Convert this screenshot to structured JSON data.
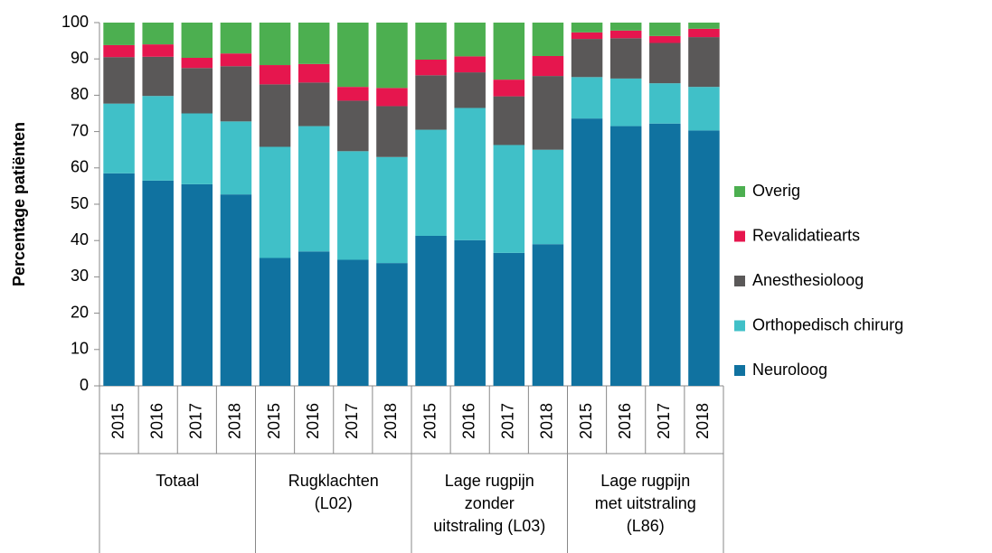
{
  "chart_data": {
    "type": "stacked_bar",
    "y_label": "Percentage patiënten",
    "categories": [
      "2015",
      "2016",
      "2017",
      "2018",
      "2015",
      "2016",
      "2017",
      "2018",
      "2015",
      "2016",
      "2017",
      "2018",
      "2015",
      "2016",
      "2017",
      "2018"
    ],
    "groups": [
      [
        "Totaal"
      ],
      [
        "Rugklachten",
        "(L02)"
      ],
      [
        "Lage rugpijn",
        "zonder",
        "uitstraling (L03)"
      ],
      [
        "Lage rugpijn",
        "met uitstraling",
        "(L86)"
      ]
    ],
    "series": [
      {
        "name": "Neuroloog",
        "color": "#1072a0",
        "values": [
          58.5,
          56.5,
          55.5,
          52.7,
          35.2,
          37,
          34.7,
          33.8,
          41.3,
          40.1,
          36.6,
          39,
          73.6,
          71.5,
          72.2,
          70.3
        ]
      },
      {
        "name": "Orthopedisch chirurg",
        "color": "#40c0c8",
        "values": [
          19.2,
          23.3,
          19.5,
          20.1,
          30.6,
          34.5,
          29.9,
          29.2,
          29.2,
          36.4,
          29.7,
          26,
          11.4,
          13.1,
          11.1,
          12
        ]
      },
      {
        "name": "Anesthesioloog",
        "color": "#5a5858",
        "values": [
          12.8,
          10.8,
          12.5,
          15.2,
          17.2,
          12,
          13.9,
          14,
          15,
          9.8,
          13.4,
          20.3,
          10.5,
          11.1,
          11.1,
          13.7
        ]
      },
      {
        "name": "Revalidatiearts",
        "color": "#e6164e",
        "values": [
          3.3,
          3.4,
          2.8,
          3.5,
          5.3,
          5.1,
          3.8,
          5,
          4.3,
          4.4,
          4.6,
          5.5,
          1.8,
          2.1,
          1.9,
          2.3
        ]
      },
      {
        "name": "Overig",
        "color": "#4caf50",
        "values": [
          6.2,
          6,
          9.7,
          8.5,
          11.7,
          11.4,
          17.7,
          18,
          10.2,
          9.3,
          15.7,
          9.2,
          2.7,
          2.2,
          3.7,
          1.7
        ]
      }
    ],
    "ylim": [
      0,
      100
    ],
    "yticks": [
      0,
      10,
      20,
      30,
      40,
      50,
      60,
      70,
      80,
      90,
      100
    ],
    "grid": false,
    "legend": "right"
  }
}
